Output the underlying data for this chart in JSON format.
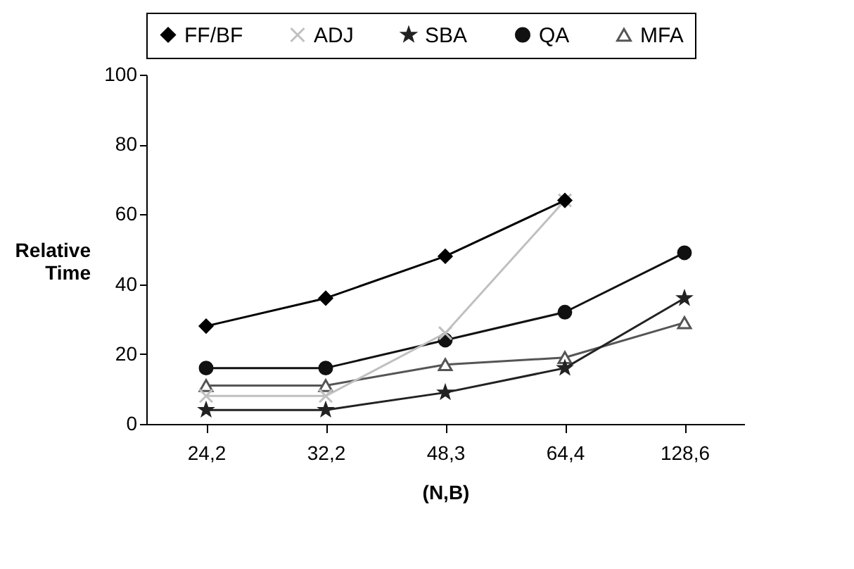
{
  "chart_data": {
    "type": "line",
    "xlabel": "(N,B)",
    "ylabel": "Relative Time",
    "categories": [
      "24,2",
      "32,2",
      "48,3",
      "64,4",
      "128,6"
    ],
    "series": [
      {
        "name": "FF/BF",
        "color": "#000000",
        "marker": "diamond",
        "values": [
          28,
          36,
          48,
          64,
          null
        ]
      },
      {
        "name": "ADJ",
        "color": "#c0c0c0",
        "marker": "cross",
        "values": [
          8,
          8,
          26,
          64,
          null
        ]
      },
      {
        "name": "SBA",
        "color": "#222222",
        "marker": "star",
        "values": [
          4,
          4,
          9,
          16,
          36
        ]
      },
      {
        "name": "QA",
        "color": "#111111",
        "marker": "circle",
        "values": [
          16,
          16,
          24,
          32,
          49
        ]
      },
      {
        "name": "MFA",
        "color": "#555555",
        "marker": "triangle",
        "values": [
          11,
          11,
          17,
          19,
          29
        ]
      }
    ],
    "ylim": [
      0,
      100
    ],
    "yticks": [
      0,
      20,
      40,
      60,
      80,
      100
    ],
    "grid": false,
    "legend": "top"
  }
}
